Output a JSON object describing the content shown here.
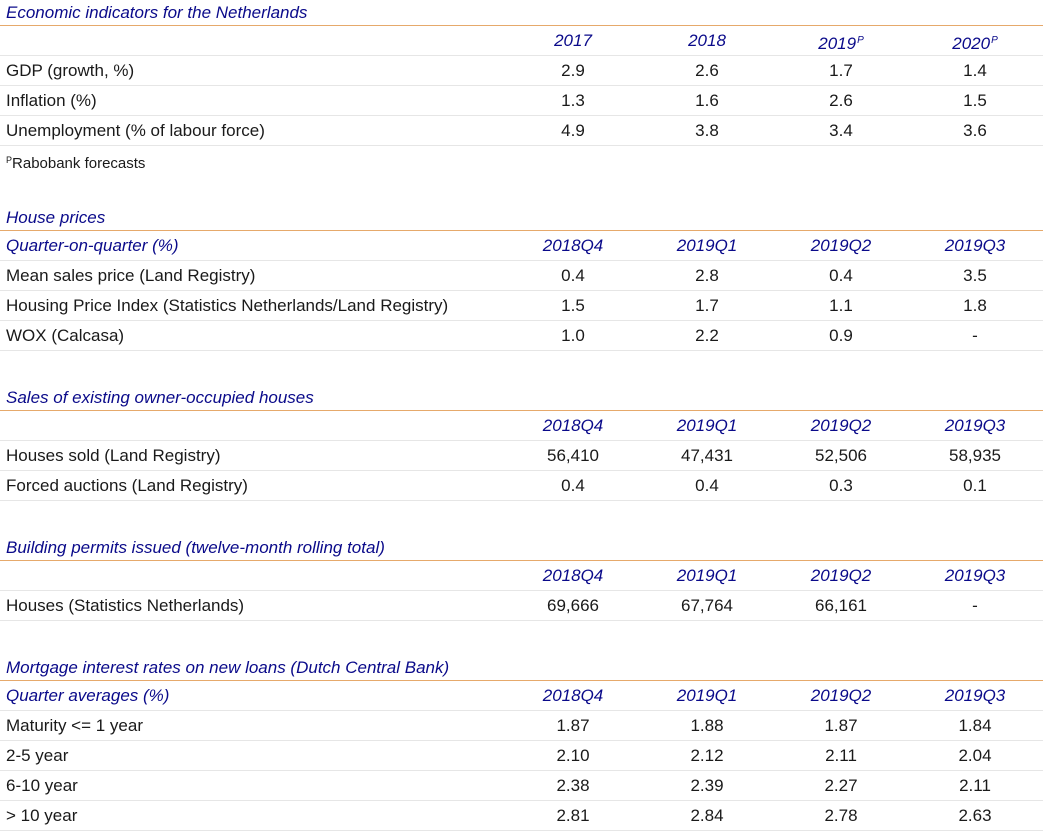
{
  "econ": {
    "title": "Economic indicators for the Netherlands",
    "subheader": "",
    "columns": [
      "2017",
      "2018",
      "2019",
      "2020"
    ],
    "column_marks": [
      "",
      "",
      "P",
      "P"
    ],
    "rows": [
      {
        "label": "GDP (growth, %)",
        "values": [
          "2.9",
          "2.6",
          "1.7",
          "1.4"
        ]
      },
      {
        "label": "Inflation (%)",
        "values": [
          "1.3",
          "1.6",
          "2.6",
          "1.5"
        ]
      },
      {
        "label": "Unemployment (% of labour force)",
        "values": [
          "4.9",
          "3.8",
          "3.4",
          "3.6"
        ]
      }
    ],
    "note_mark": "P",
    "note": "Rabobank forecasts"
  },
  "house_prices": {
    "title": "House prices",
    "subheader": "Quarter-on-quarter (%)",
    "columns": [
      "2018Q4",
      "2019Q1",
      "2019Q2",
      "2019Q3"
    ],
    "rows": [
      {
        "label": "Mean sales price (Land Registry)",
        "values": [
          "0.4",
          "2.8",
          "0.4",
          "3.5"
        ]
      },
      {
        "label": "Housing Price Index (Statistics Netherlands/Land Registry)",
        "values": [
          "1.5",
          "1.7",
          "1.1",
          "1.8"
        ]
      },
      {
        "label": "WOX (Calcasa)",
        "values": [
          "1.0",
          "2.2",
          "0.9",
          "-"
        ]
      }
    ]
  },
  "sales": {
    "title": "Sales of existing owner-occupied houses",
    "subheader": "",
    "columns": [
      "2018Q4",
      "2019Q1",
      "2019Q2",
      "2019Q3"
    ],
    "rows": [
      {
        "label": "Houses sold (Land Registry)",
        "values": [
          "56,410",
          "47,431",
          "52,506",
          "58,935"
        ]
      },
      {
        "label": "Forced auctions (Land Registry)",
        "values": [
          "0.4",
          "0.4",
          "0.3",
          "0.1"
        ]
      }
    ]
  },
  "permits": {
    "title": "Building permits issued (twelve-month rolling total)",
    "subheader": "",
    "columns": [
      "2018Q4",
      "2019Q1",
      "2019Q2",
      "2019Q3"
    ],
    "rows": [
      {
        "label": "Houses (Statistics Netherlands)",
        "values": [
          "69,666",
          "67,764",
          "66,161",
          "-"
        ]
      }
    ]
  },
  "mortgage": {
    "title": "Mortgage interest rates on new loans (Dutch Central Bank)",
    "subheader": "Quarter averages (%)",
    "columns": [
      "2018Q4",
      "2019Q1",
      "2019Q2",
      "2019Q3"
    ],
    "rows": [
      {
        "label": "Maturity <= 1 year",
        "values": [
          "1.87",
          "1.88",
          "1.87",
          "1.84"
        ]
      },
      {
        "label": "2-5 year",
        "values": [
          "2.10",
          "2.12",
          "2.11",
          "2.04"
        ]
      },
      {
        "label": "6-10 year",
        "values": [
          "2.38",
          "2.39",
          "2.27",
          "2.11"
        ]
      },
      {
        "label": "> 10 year",
        "values": [
          "2.81",
          "2.84",
          "2.78",
          "2.63"
        ]
      }
    ]
  }
}
